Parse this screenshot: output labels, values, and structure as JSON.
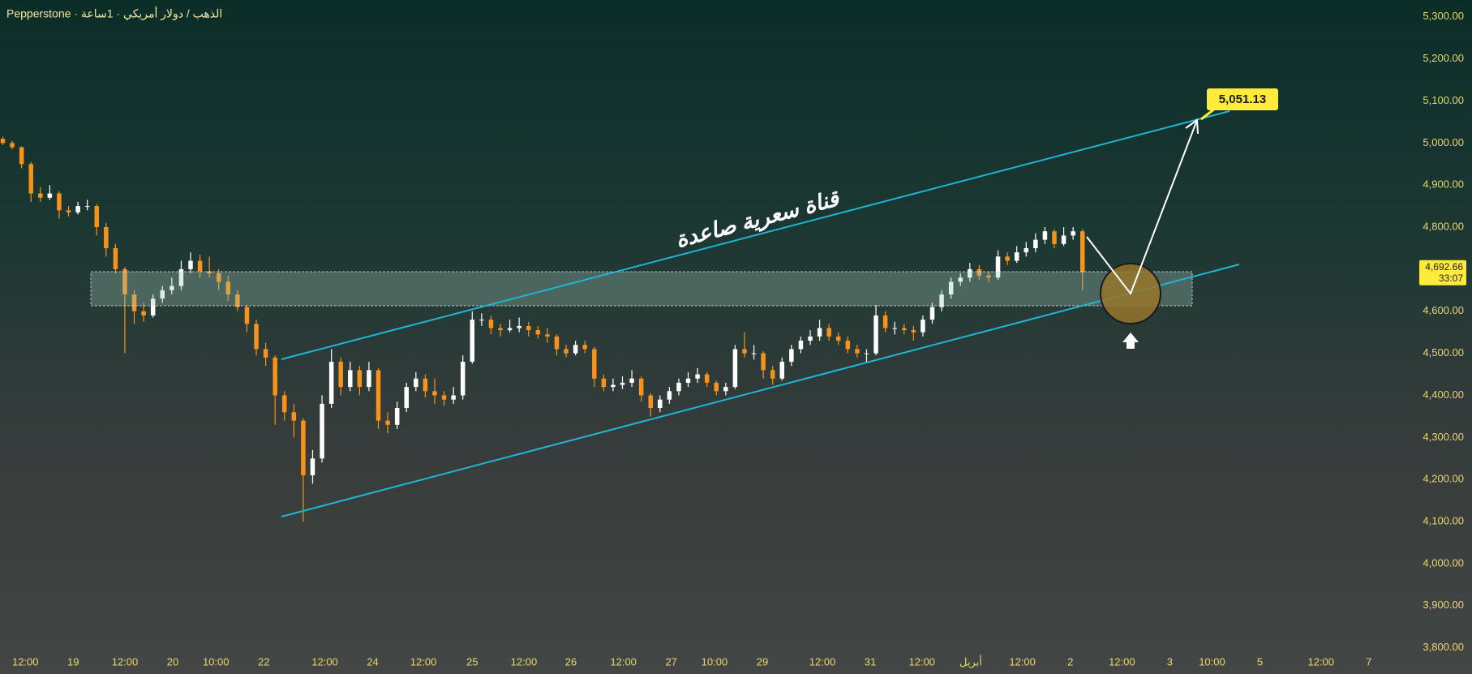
{
  "chart_data": {
    "type": "candlestick",
    "title": "Pepperstone · الذهب / دولار أمريكي · 1ساعة",
    "up_color": "#ffffff",
    "down_color": "#f7931a",
    "x": [
      0,
      1,
      2,
      3,
      4,
      5,
      6,
      7,
      8,
      9,
      10,
      11,
      12,
      13,
      14,
      15,
      16,
      17,
      18,
      19,
      20,
      21,
      22,
      23,
      24,
      25,
      26,
      27,
      28,
      29,
      30,
      31,
      32,
      33,
      34,
      35,
      36,
      37,
      38,
      39,
      40,
      41,
      42,
      43,
      44,
      45,
      46,
      47,
      48,
      49,
      50,
      51,
      52,
      53,
      54,
      55,
      56,
      57,
      58,
      59,
      60,
      61,
      62,
      63,
      64,
      65,
      66,
      67,
      68,
      69,
      70,
      71,
      72,
      73,
      74,
      75,
      76,
      77,
      78,
      79,
      80,
      81,
      82,
      83,
      84,
      85,
      86,
      87,
      88,
      89,
      90,
      91,
      92,
      93,
      94,
      95,
      96,
      97,
      98,
      99,
      100,
      101,
      102,
      103,
      104,
      105,
      106,
      107,
      108,
      109,
      110,
      111,
      112,
      113,
      114,
      115
    ],
    "ohlc": [
      [
        5010,
        5015,
        4995,
        5000
      ],
      [
        5000,
        5005,
        4985,
        4990
      ],
      [
        4990,
        4992,
        4940,
        4950
      ],
      [
        4950,
        4955,
        4860,
        4880
      ],
      [
        4880,
        4895,
        4860,
        4870
      ],
      [
        4870,
        4900,
        4865,
        4880
      ],
      [
        4880,
        4885,
        4820,
        4840
      ],
      [
        4840,
        4850,
        4825,
        4835
      ],
      [
        4835,
        4860,
        4830,
        4850
      ],
      [
        4850,
        4865,
        4840,
        4850
      ],
      [
        4850,
        4855,
        4780,
        4800
      ],
      [
        4800,
        4810,
        4730,
        4750
      ],
      [
        4750,
        4760,
        4690,
        4700
      ],
      [
        4700,
        4705,
        4500,
        4640
      ],
      [
        4640,
        4650,
        4570,
        4600
      ],
      [
        4600,
        4620,
        4575,
        4590
      ],
      [
        4590,
        4640,
        4585,
        4630
      ],
      [
        4630,
        4660,
        4620,
        4650
      ],
      [
        4650,
        4680,
        4640,
        4660
      ],
      [
        4660,
        4720,
        4650,
        4700
      ],
      [
        4700,
        4740,
        4690,
        4720
      ],
      [
        4720,
        4735,
        4680,
        4695
      ],
      [
        4695,
        4730,
        4680,
        4690
      ],
      [
        4690,
        4700,
        4650,
        4670
      ],
      [
        4670,
        4685,
        4625,
        4640
      ],
      [
        4640,
        4650,
        4600,
        4610
      ],
      [
        4610,
        4615,
        4550,
        4570
      ],
      [
        4570,
        4580,
        4495,
        4510
      ],
      [
        4510,
        4525,
        4470,
        4490
      ],
      [
        4490,
        4495,
        4330,
        4400
      ],
      [
        4400,
        4410,
        4340,
        4360
      ],
      [
        4360,
        4380,
        4300,
        4340
      ],
      [
        4340,
        4345,
        4100,
        4210
      ],
      [
        4210,
        4270,
        4190,
        4250
      ],
      [
        4250,
        4400,
        4240,
        4380
      ],
      [
        4380,
        4510,
        4370,
        4480
      ],
      [
        4480,
        4490,
        4400,
        4420
      ],
      [
        4420,
        4480,
        4410,
        4460
      ],
      [
        4460,
        4470,
        4400,
        4420
      ],
      [
        4420,
        4480,
        4410,
        4460
      ],
      [
        4460,
        4465,
        4320,
        4340
      ],
      [
        4340,
        4360,
        4310,
        4330
      ],
      [
        4330,
        4385,
        4320,
        4370
      ],
      [
        4370,
        4430,
        4360,
        4420
      ],
      [
        4420,
        4455,
        4410,
        4440
      ],
      [
        4440,
        4450,
        4395,
        4410
      ],
      [
        4410,
        4440,
        4380,
        4400
      ],
      [
        4400,
        4410,
        4375,
        4390
      ],
      [
        4390,
        4420,
        4380,
        4400
      ],
      [
        4400,
        4495,
        4390,
        4480
      ],
      [
        4480,
        4600,
        4475,
        4580
      ],
      [
        4580,
        4595,
        4565,
        4580
      ],
      [
        4580,
        4590,
        4545,
        4560
      ],
      [
        4560,
        4570,
        4540,
        4555
      ],
      [
        4555,
        4580,
        4550,
        4560
      ],
      [
        4560,
        4585,
        4550,
        4565
      ],
      [
        4565,
        4575,
        4540,
        4555
      ],
      [
        4555,
        4565,
        4535,
        4545
      ],
      [
        4545,
        4560,
        4525,
        4540
      ],
      [
        4540,
        4545,
        4495,
        4510
      ],
      [
        4510,
        4520,
        4490,
        4500
      ],
      [
        4500,
        4530,
        4495,
        4520
      ],
      [
        4520,
        4530,
        4500,
        4510
      ],
      [
        4510,
        4515,
        4420,
        4440
      ],
      [
        4440,
        4450,
        4410,
        4420
      ],
      [
        4420,
        4440,
        4410,
        4425
      ],
      [
        4425,
        4445,
        4415,
        4430
      ],
      [
        4430,
        4460,
        4420,
        4440
      ],
      [
        4440,
        4445,
        4385,
        4400
      ],
      [
        4400,
        4405,
        4350,
        4370
      ],
      [
        4370,
        4400,
        4360,
        4390
      ],
      [
        4390,
        4420,
        4380,
        4410
      ],
      [
        4410,
        4440,
        4400,
        4430
      ],
      [
        4430,
        4455,
        4420,
        4440
      ],
      [
        4440,
        4465,
        4430,
        4450
      ],
      [
        4450,
        4455,
        4420,
        4430
      ],
      [
        4430,
        4435,
        4400,
        4410
      ],
      [
        4410,
        4430,
        4400,
        4420
      ],
      [
        4420,
        4520,
        4415,
        4510
      ],
      [
        4510,
        4550,
        4490,
        4500
      ],
      [
        4500,
        4520,
        4485,
        4500
      ],
      [
        4500,
        4505,
        4440,
        4460
      ],
      [
        4460,
        4470,
        4425,
        4440
      ],
      [
        4440,
        4490,
        4435,
        4480
      ],
      [
        4480,
        4520,
        4470,
        4510
      ],
      [
        4510,
        4540,
        4500,
        4530
      ],
      [
        4530,
        4555,
        4520,
        4540
      ],
      [
        4540,
        4580,
        4530,
        4560
      ],
      [
        4560,
        4570,
        4530,
        4540
      ],
      [
        4540,
        4550,
        4520,
        4530
      ],
      [
        4530,
        4540,
        4500,
        4510
      ],
      [
        4510,
        4520,
        4490,
        4500
      ],
      [
        4500,
        4510,
        4480,
        4500
      ],
      [
        4500,
        4615,
        4495,
        4590
      ],
      [
        4590,
        4600,
        4550,
        4560
      ],
      [
        4560,
        4575,
        4545,
        4560
      ],
      [
        4560,
        4570,
        4545,
        4555
      ],
      [
        4555,
        4565,
        4530,
        4550
      ],
      [
        4550,
        4590,
        4540,
        4580
      ],
      [
        4580,
        4620,
        4570,
        4610
      ],
      [
        4610,
        4650,
        4600,
        4640
      ],
      [
        4640,
        4680,
        4630,
        4670
      ],
      [
        4670,
        4690,
        4660,
        4680
      ],
      [
        4680,
        4715,
        4670,
        4700
      ],
      [
        4700,
        4710,
        4675,
        4685
      ],
      [
        4685,
        4695,
        4670,
        4680
      ],
      [
        4680,
        4745,
        4675,
        4730
      ],
      [
        4730,
        4740,
        4710,
        4720
      ],
      [
        4720,
        4755,
        4715,
        4740
      ],
      [
        4740,
        4765,
        4730,
        4750
      ],
      [
        4750,
        4785,
        4740,
        4770
      ],
      [
        4770,
        4800,
        4760,
        4790
      ],
      [
        4790,
        4795,
        4750,
        4760
      ],
      [
        4760,
        4800,
        4755,
        4780
      ],
      [
        4780,
        4800,
        4770,
        4790
      ],
      [
        4790,
        4795,
        4650,
        4692.66
      ]
    ],
    "xlim": [
      -0.3,
      150.7
    ],
    "xticks": [
      {
        "value": 2.4,
        "label": "12:00"
      },
      {
        "value": 7.5,
        "label": "19"
      },
      {
        "value": 13,
        "label": "12:00"
      },
      {
        "value": 18.1,
        "label": "20"
      },
      {
        "value": 22.7,
        "label": "10:00"
      },
      {
        "value": 27.8,
        "label": "22"
      },
      {
        "value": 34.3,
        "label": "12:00"
      },
      {
        "value": 39.4,
        "label": "24"
      },
      {
        "value": 44.8,
        "label": "12:00"
      },
      {
        "value": 50,
        "label": "25"
      },
      {
        "value": 55.5,
        "label": "12:00"
      },
      {
        "value": 60.5,
        "label": "26"
      },
      {
        "value": 66.1,
        "label": "12:00"
      },
      {
        "value": 71.2,
        "label": "27"
      },
      {
        "value": 75.8,
        "label": "10:00"
      },
      {
        "value": 80.9,
        "label": "29"
      },
      {
        "value": 87.3,
        "label": "12:00"
      },
      {
        "value": 92.4,
        "label": "31"
      },
      {
        "value": 97.9,
        "label": "12:00"
      },
      {
        "value": 103.1,
        "label": "أبريل"
      },
      {
        "value": 108.6,
        "label": "12:00"
      },
      {
        "value": 113.7,
        "label": "2"
      },
      {
        "value": 119.2,
        "label": "12:00"
      },
      {
        "value": 124.3,
        "label": "3"
      },
      {
        "value": 128.8,
        "label": "10:00"
      },
      {
        "value": 133.9,
        "label": "5"
      },
      {
        "value": 140.4,
        "label": "12:00"
      },
      {
        "value": 145.5,
        "label": "7"
      }
    ],
    "ylim": [
      3780,
      5340
    ],
    "yticks": [
      {
        "value": 3800,
        "label": "3,800.00"
      },
      {
        "value": 3900,
        "label": "3,900.00"
      },
      {
        "value": 4000,
        "label": "4,000.00"
      },
      {
        "value": 4100,
        "label": "4,100.00"
      },
      {
        "value": 4200,
        "label": "4,200.00"
      },
      {
        "value": 4300,
        "label": "4,300.00"
      },
      {
        "value": 4400,
        "label": "4,400.00"
      },
      {
        "value": 4500,
        "label": "4,500.00"
      },
      {
        "value": 4600,
        "label": "4,600.00"
      },
      {
        "value": 4700,
        "label": "4,700.00"
      },
      {
        "value": 4800,
        "label": "4,800.00"
      },
      {
        "value": 4900,
        "label": "4,900.00"
      },
      {
        "value": 5000,
        "label": "5,000.00"
      },
      {
        "value": 5100,
        "label": "5,100.00"
      },
      {
        "value": 5200,
        "label": "5,200.00"
      },
      {
        "value": 5300,
        "label": "5,300.00"
      }
    ],
    "last_price": {
      "value": 4692.66,
      "label": "4,692.66"
    },
    "countdown": "33:07",
    "channel_label": "قناة سعرية صاعدة",
    "target": {
      "value": 5051.13,
      "label": "5,051.13"
    }
  }
}
